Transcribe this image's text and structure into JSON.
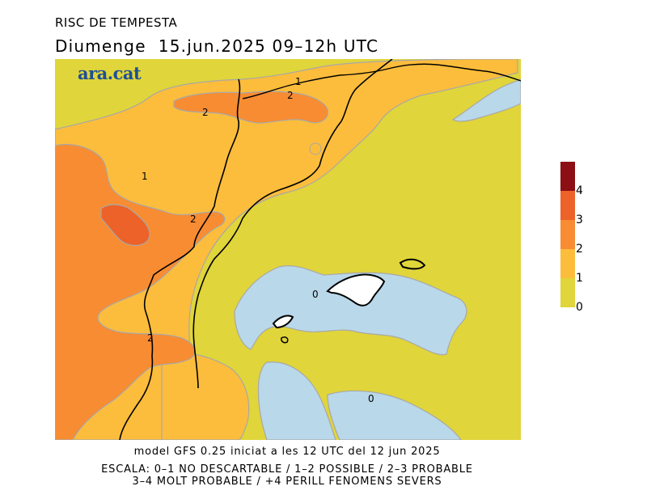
{
  "header": {
    "title_top": "RISC DE TEMPESTA",
    "title_main": "Diumenge  15.jun.2025 09–12h UTC"
  },
  "logo": {
    "text": "ara.cat",
    "color": "#1d4f96"
  },
  "footer": {
    "model_line": "model GFS 0.25 iniciat a les 12 UTC del 12 jun 2025",
    "scale_line_1": "ESCALA: 0–1 NO DESCARTABLE / 1–2 POSSIBLE / 2–3 PROBABLE",
    "scale_line_2": "3–4 MOLT PROBABLE / +4 PERILL FENOMENS SEVERS"
  },
  "legend": {
    "levels": [
      {
        "label": "0",
        "color": "#e0d53a"
      },
      {
        "label": "1",
        "color": "#fcbd3c"
      },
      {
        "label": "2",
        "color": "#f88c32"
      },
      {
        "label": "3",
        "color": "#ec6228"
      },
      {
        "label": "4",
        "color": "#8b0f14"
      }
    ]
  },
  "map": {
    "sea_color": "#b9d8ea",
    "land_color": "#ffffff",
    "contour_labels": [
      "1",
      "2",
      "2",
      "1",
      "2",
      "2",
      "0",
      "0"
    ]
  }
}
